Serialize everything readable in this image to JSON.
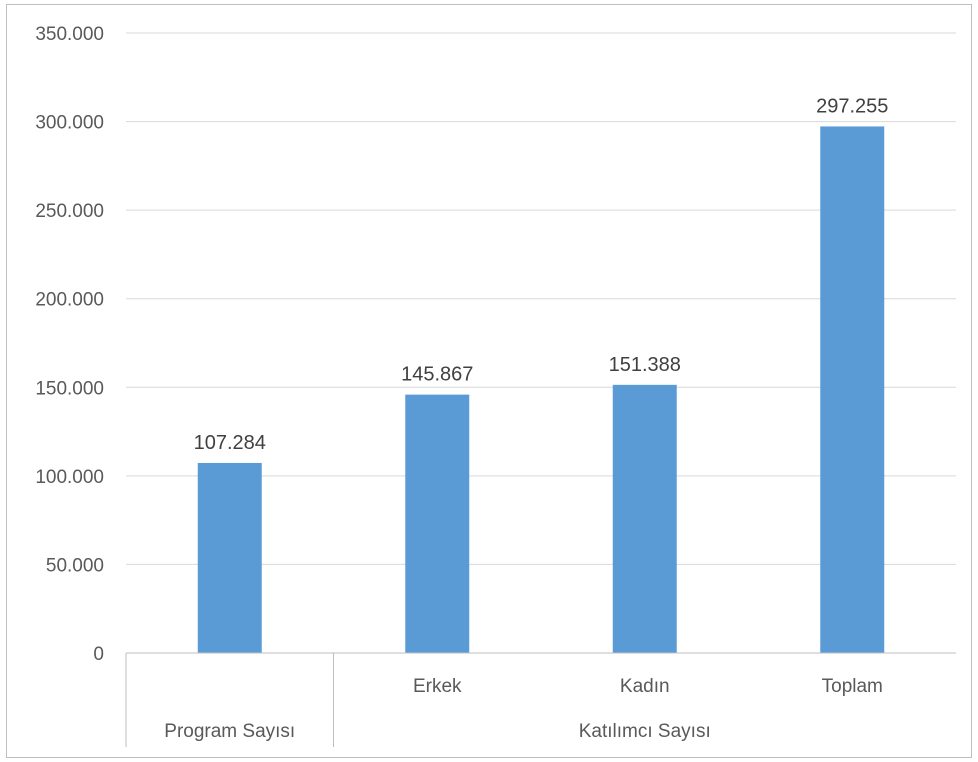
{
  "chart_data": {
    "type": "bar",
    "categories": [
      "",
      "Erkek",
      "Kadın",
      "Toplam"
    ],
    "groups": [
      {
        "label": "Program Sayısı",
        "categories": [
          ""
        ]
      },
      {
        "label": "Katılımcı Sayısı",
        "categories": [
          "Erkek",
          "Kadın",
          "Toplam"
        ]
      }
    ],
    "values": [
      107284,
      145867,
      151388,
      297255
    ],
    "value_labels": [
      "107.284",
      "145.867",
      "151.388",
      "297.255"
    ],
    "yticks": [
      0,
      50000,
      100000,
      150000,
      200000,
      250000,
      300000,
      350000
    ],
    "ytick_labels": [
      "0",
      "50.000",
      "100.000",
      "150.000",
      "200.000",
      "250.000",
      "300.000",
      "350.000"
    ],
    "ylim": [
      0,
      350000
    ],
    "grid": true,
    "bar_color": "#5b9bd5",
    "title": "",
    "xlabel": "",
    "ylabel": ""
  }
}
